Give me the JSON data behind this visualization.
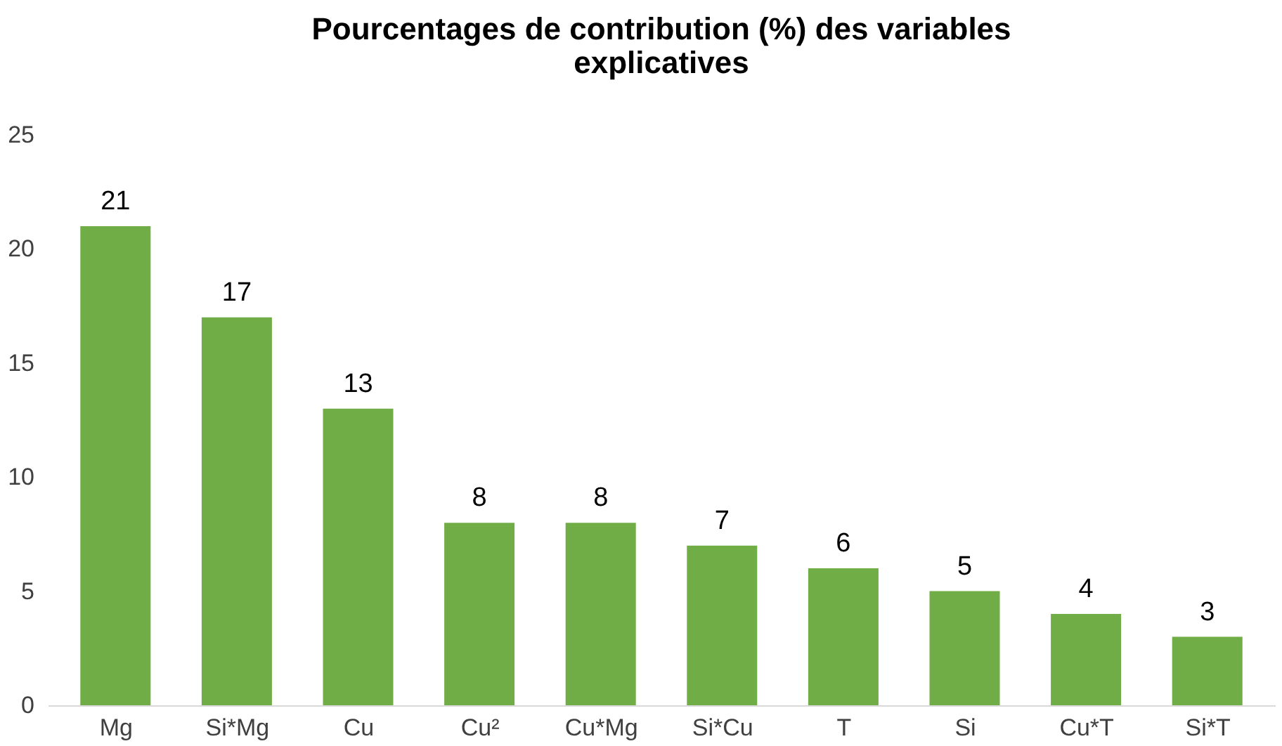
{
  "chart_data": {
    "type": "bar",
    "title": "Pourcentages de contribution (%) des variables explicatives",
    "categories": [
      "Mg",
      "Si*Mg",
      "Cu",
      "Cu²",
      "Cu*Mg",
      "Si*Cu",
      "T",
      "Si",
      "Cu*T",
      "Si*T"
    ],
    "values": [
      21,
      17,
      13,
      8,
      8,
      7,
      6,
      5,
      4,
      3
    ],
    "color": "#70ad47",
    "ylim": [
      0,
      25
    ],
    "yticks": [
      0,
      5,
      10,
      15,
      20,
      25
    ],
    "grid": false,
    "data_labels": true
  }
}
